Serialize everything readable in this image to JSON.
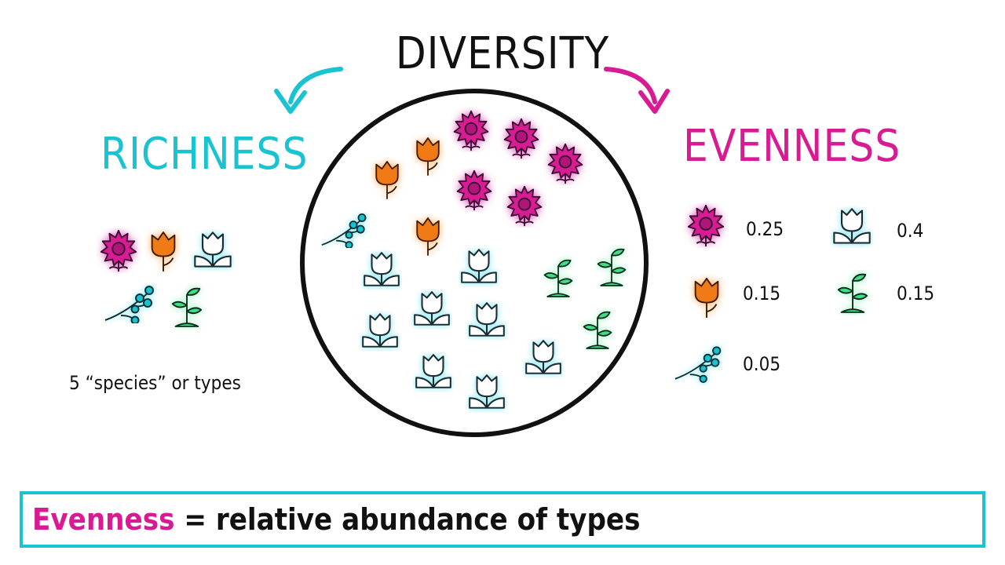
{
  "title": "DIVERSITY",
  "richness": {
    "heading": "RICHNESS",
    "caption": "5 “species” or types"
  },
  "evenness": {
    "heading": "EVENNESS",
    "items": [
      {
        "species": "sunflower",
        "value": "0.25"
      },
      {
        "species": "tulip-orange",
        "value": "0.15"
      },
      {
        "species": "blossom-branch",
        "value": "0.05"
      },
      {
        "species": "tulip-white",
        "value": "0.4"
      },
      {
        "species": "sprout",
        "value": "0.15"
      }
    ]
  },
  "definition": {
    "term": "Evenness",
    "equals": " = ",
    "text": "relative abundance of types"
  },
  "colors": {
    "richness": "#19c3d1",
    "evenness": "#d81b93",
    "sunflower": "#d81b93",
    "tulip_orange": "#f07a12",
    "tulip_white": "#ffffff",
    "blossom": "#19c3d1",
    "sprout": "#3fdd86"
  },
  "icons": [
    "sunflower-icon",
    "orange-tulip-icon",
    "white-tulip-icon",
    "blossom-branch-icon",
    "sprout-icon"
  ]
}
